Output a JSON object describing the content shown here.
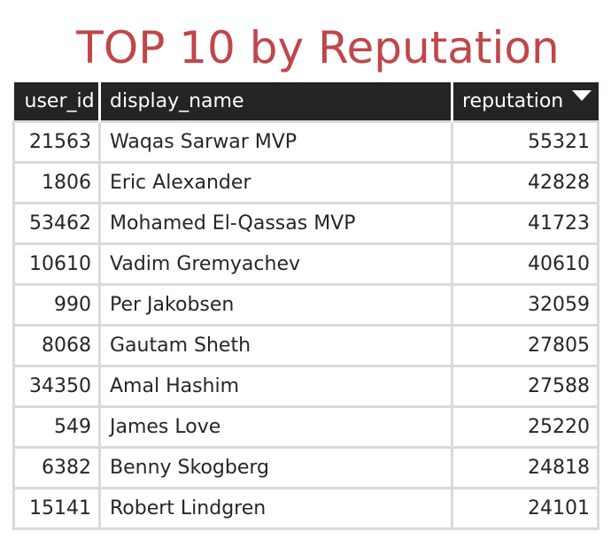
{
  "title": "TOP 10 by Reputation",
  "colors": {
    "title": "#c0464a",
    "header_bg": "#252423",
    "header_text": "#ffffff",
    "cell_border": "#d9d9d9",
    "cell_text": "#262626"
  },
  "table": {
    "columns": [
      "user_id",
      "display_name",
      "reputation"
    ],
    "sort": {
      "column": "reputation",
      "direction": "descending",
      "icon": "sort-descending-icon"
    },
    "rows": [
      {
        "user_id": "21563",
        "display_name": "Waqas Sarwar MVP",
        "reputation": "55321"
      },
      {
        "user_id": "1806",
        "display_name": "Eric Alexander",
        "reputation": "42828"
      },
      {
        "user_id": "53462",
        "display_name": "Mohamed El-Qassas MVP",
        "reputation": "41723"
      },
      {
        "user_id": "10610",
        "display_name": "Vadim Gremyachev",
        "reputation": "40610"
      },
      {
        "user_id": "990",
        "display_name": "Per Jakobsen",
        "reputation": "32059"
      },
      {
        "user_id": "8068",
        "display_name": "Gautam Sheth",
        "reputation": "27805"
      },
      {
        "user_id": "34350",
        "display_name": "Amal Hashim",
        "reputation": "27588"
      },
      {
        "user_id": "549",
        "display_name": "James Love",
        "reputation": "25220"
      },
      {
        "user_id": "6382",
        "display_name": "Benny Skogberg",
        "reputation": "24818"
      },
      {
        "user_id": "15141",
        "display_name": "Robert Lindgren",
        "reputation": "24101"
      }
    ]
  }
}
